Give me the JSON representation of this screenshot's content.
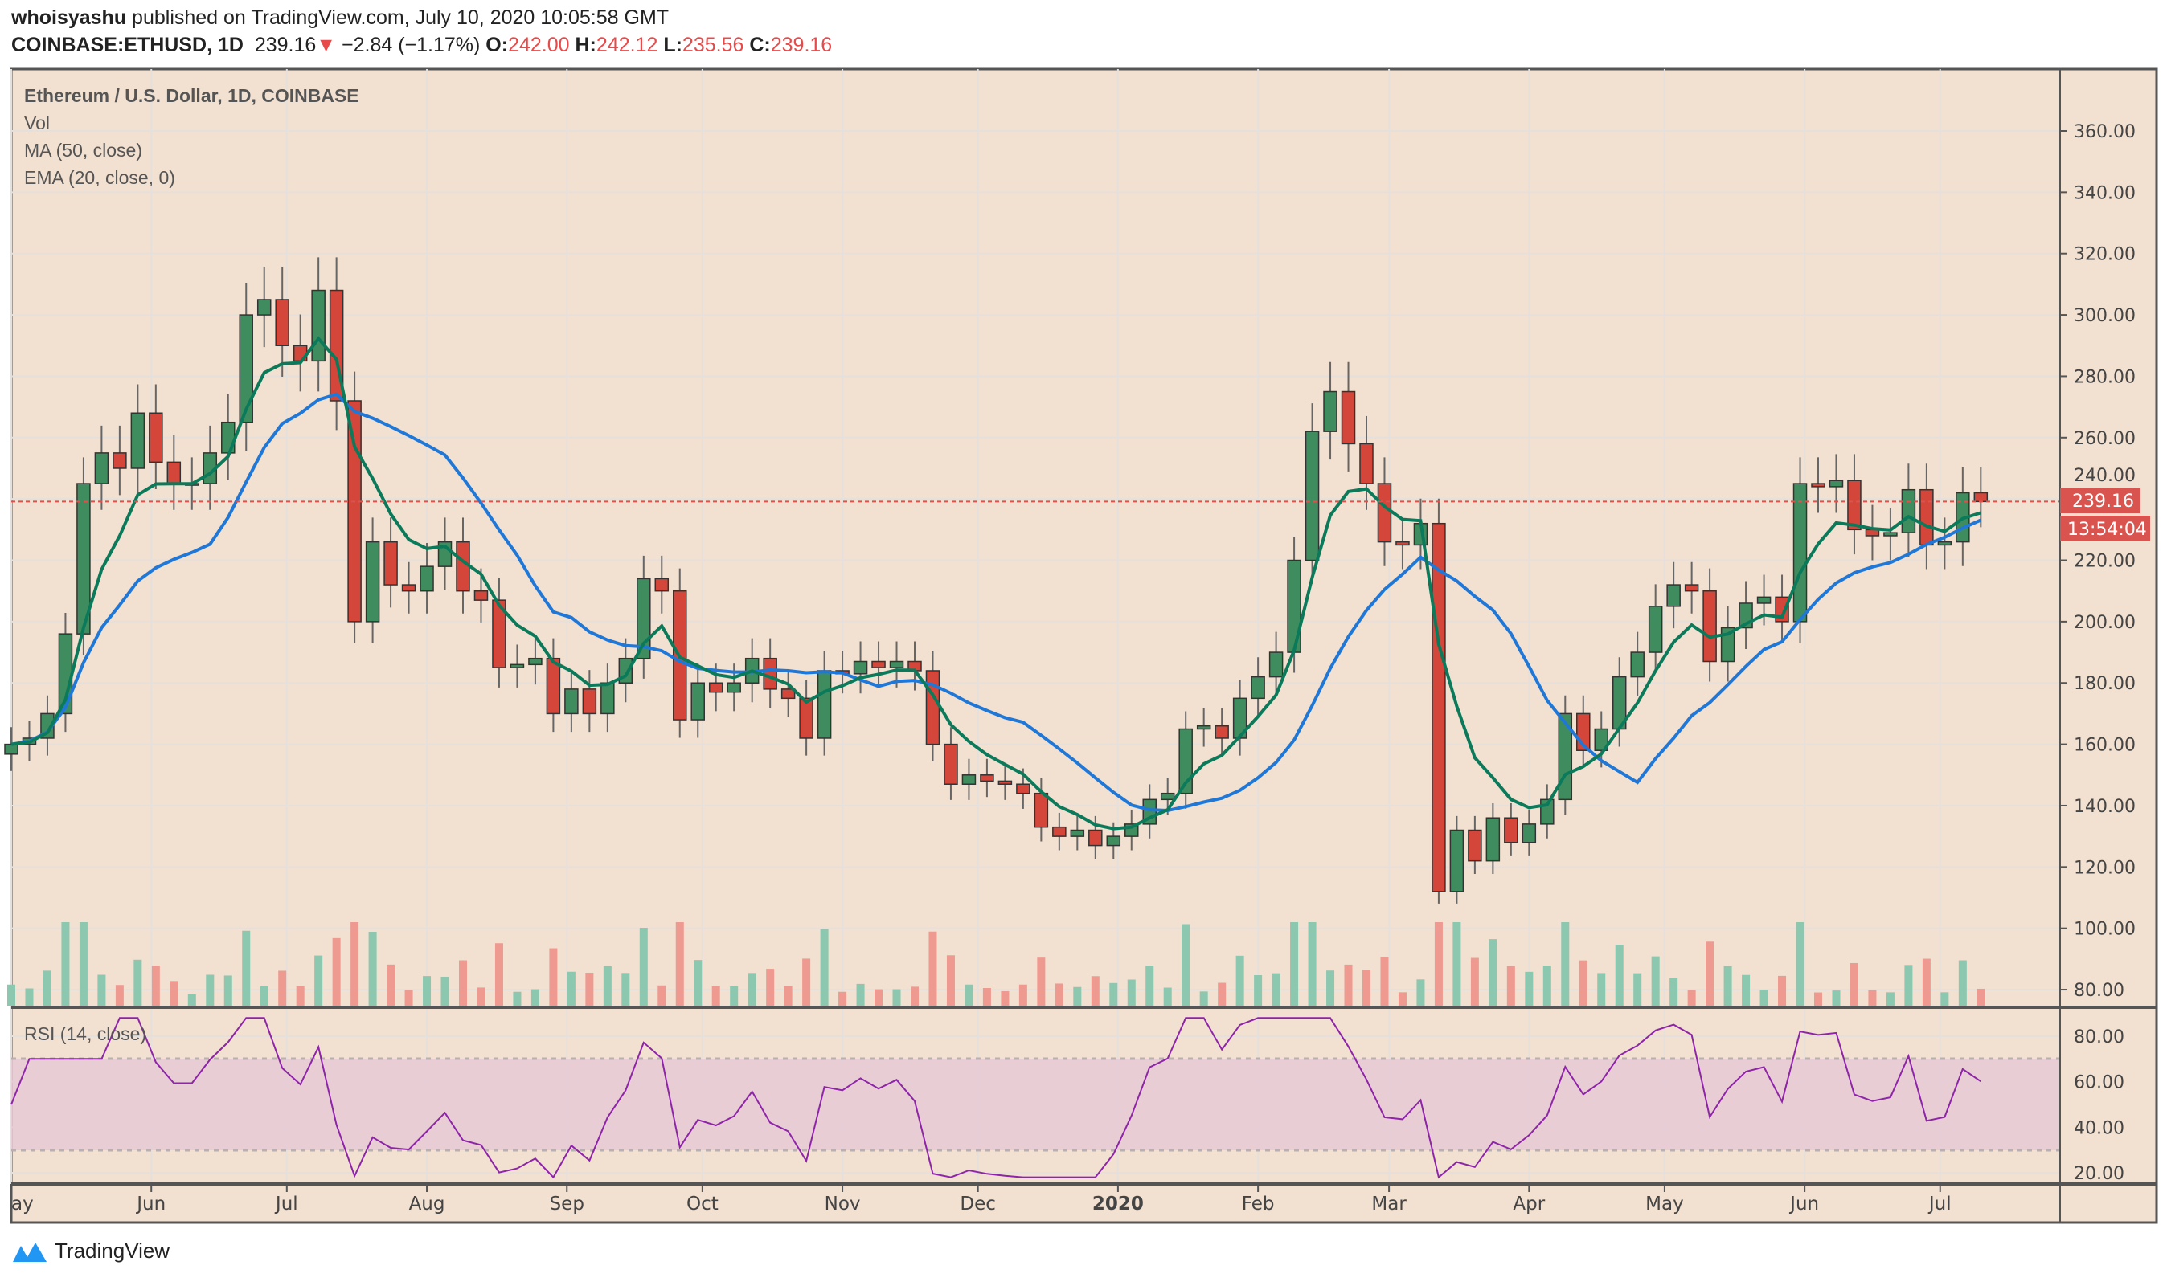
{
  "header": {
    "author": "whoisyashu",
    "published": "published on TradingView.com, July 10, 2020 10:05:58 GMT",
    "symbol": "COINBASE:ETHUSD, 1D",
    "last": "239.16",
    "change": "−2.84 (−1.17%)",
    "o_label": "O:",
    "o": "242.00",
    "h_label": "H:",
    "h": "242.12",
    "l_label": "L:",
    "l": "235.56",
    "c_label": "C:",
    "c": "239.16"
  },
  "legend": {
    "title": "Ethereum / U.S. Dollar, 1D, COINBASE",
    "vol": "Vol",
    "ma": "MA (50, close)",
    "ema": "EMA (20, close, 0)",
    "rsi": "RSI (14, close)"
  },
  "price_label": "239.16",
  "countdown": "13:54:04",
  "footer": {
    "brand": "TradingView"
  },
  "colors": {
    "background": "#f2e0d0",
    "up": "#3f8d5e",
    "down": "#d4463a",
    "ema": "#0b7a5a",
    "ma": "#1f78d8",
    "rsi": "#8e24aa",
    "rsi_band": "#e6c8d4",
    "last_price": "#d9534f"
  },
  "chart_data": [
    {
      "type": "candlestick",
      "series_name": "Ethereum / U.S. Dollar, 1D, COINBASE",
      "overlays": [
        "MA (50, close)",
        "EMA (20, close, 0)"
      ],
      "ylim": [
        70,
        370
      ],
      "y_ticks": [
        "80.00",
        "100.00",
        "120.00",
        "140.00",
        "160.00",
        "180.00",
        "200.00",
        "220.00",
        "240.00",
        "260.00",
        "280.00",
        "300.00",
        "320.00",
        "340.00",
        "360.00"
      ],
      "x_ticks": [
        {
          "label": "ay",
          "date": "2019-05-01"
        },
        {
          "label": "Jun",
          "date": "2019-06-01"
        },
        {
          "label": "Jul",
          "date": "2019-07-01"
        },
        {
          "label": "Aug",
          "date": "2019-08-01"
        },
        {
          "label": "Sep",
          "date": "2019-09-01"
        },
        {
          "label": "Oct",
          "date": "2019-10-01"
        },
        {
          "label": "Nov",
          "date": "2019-11-01"
        },
        {
          "label": "Dec",
          "date": "2019-12-01"
        },
        {
          "label": "2020",
          "date": "2020-01-01"
        },
        {
          "label": "Feb",
          "date": "2020-02-01"
        },
        {
          "label": "Mar",
          "date": "2020-03-01"
        },
        {
          "label": "Apr",
          "date": "2020-04-01"
        },
        {
          "label": "May",
          "date": "2020-05-01"
        },
        {
          "label": "Jun",
          "date": "2020-06-01"
        },
        {
          "label": "Jul",
          "date": "2020-07-01"
        }
      ],
      "last_price": 239.16,
      "closes": [
        [
          "2019-05-01",
          160
        ],
        [
          "2019-05-05",
          162
        ],
        [
          "2019-05-09",
          170
        ],
        [
          "2019-05-13",
          196
        ],
        [
          "2019-05-17",
          245
        ],
        [
          "2019-05-21",
          255
        ],
        [
          "2019-05-25",
          250
        ],
        [
          "2019-05-29",
          268
        ],
        [
          "2019-06-02",
          252
        ],
        [
          "2019-06-06",
          245
        ],
        [
          "2019-06-10",
          245
        ],
        [
          "2019-06-14",
          255
        ],
        [
          "2019-06-18",
          265
        ],
        [
          "2019-06-22",
          300
        ],
        [
          "2019-06-26",
          305
        ],
        [
          "2019-06-30",
          290
        ],
        [
          "2019-07-04",
          285
        ],
        [
          "2019-07-08",
          308
        ],
        [
          "2019-07-12",
          272
        ],
        [
          "2019-07-16",
          200
        ],
        [
          "2019-07-20",
          226
        ],
        [
          "2019-07-24",
          212
        ],
        [
          "2019-07-28",
          210
        ],
        [
          "2019-08-01",
          218
        ],
        [
          "2019-08-05",
          226
        ],
        [
          "2019-08-09",
          210
        ],
        [
          "2019-08-13",
          207
        ],
        [
          "2019-08-17",
          185
        ],
        [
          "2019-08-21",
          186
        ],
        [
          "2019-08-25",
          188
        ],
        [
          "2019-08-29",
          170
        ],
        [
          "2019-09-02",
          178
        ],
        [
          "2019-09-06",
          170
        ],
        [
          "2019-09-10",
          180
        ],
        [
          "2019-09-14",
          188
        ],
        [
          "2019-09-18",
          214
        ],
        [
          "2019-09-22",
          210
        ],
        [
          "2019-09-26",
          168
        ],
        [
          "2019-09-30",
          180
        ],
        [
          "2019-10-04",
          177
        ],
        [
          "2019-10-08",
          180
        ],
        [
          "2019-10-12",
          188
        ],
        [
          "2019-10-16",
          178
        ],
        [
          "2019-10-20",
          175
        ],
        [
          "2019-10-24",
          162
        ],
        [
          "2019-10-28",
          184
        ],
        [
          "2019-11-01",
          183
        ],
        [
          "2019-11-05",
          187
        ],
        [
          "2019-11-09",
          185
        ],
        [
          "2019-11-13",
          187
        ],
        [
          "2019-11-17",
          184
        ],
        [
          "2019-11-21",
          160
        ],
        [
          "2019-11-25",
          147
        ],
        [
          "2019-11-29",
          150
        ],
        [
          "2019-12-03",
          148
        ],
        [
          "2019-12-07",
          147
        ],
        [
          "2019-12-11",
          144
        ],
        [
          "2019-12-15",
          133
        ],
        [
          "2019-12-19",
          130
        ],
        [
          "2019-12-23",
          132
        ],
        [
          "2019-12-27",
          127
        ],
        [
          "2019-12-31",
          130
        ],
        [
          "2020-01-04",
          134
        ],
        [
          "2020-01-08",
          142
        ],
        [
          "2020-01-12",
          144
        ],
        [
          "2020-01-16",
          165
        ],
        [
          "2020-01-20",
          166
        ],
        [
          "2020-01-24",
          162
        ],
        [
          "2020-01-28",
          175
        ],
        [
          "2020-02-01",
          182
        ],
        [
          "2020-02-05",
          190
        ],
        [
          "2020-02-09",
          220
        ],
        [
          "2020-02-13",
          262
        ],
        [
          "2020-02-17",
          275
        ],
        [
          "2020-02-21",
          258
        ],
        [
          "2020-02-25",
          245
        ],
        [
          "2020-02-29",
          226
        ],
        [
          "2020-03-04",
          225
        ],
        [
          "2020-03-08",
          232
        ],
        [
          "2020-03-12",
          112
        ],
        [
          "2020-03-16",
          132
        ],
        [
          "2020-03-20",
          122
        ],
        [
          "2020-03-24",
          136
        ],
        [
          "2020-03-28",
          128
        ],
        [
          "2020-04-01",
          134
        ],
        [
          "2020-04-05",
          142
        ],
        [
          "2020-04-09",
          170
        ],
        [
          "2020-04-13",
          158
        ],
        [
          "2020-04-17",
          165
        ],
        [
          "2020-04-21",
          182
        ],
        [
          "2020-04-25",
          190
        ],
        [
          "2020-04-29",
          205
        ],
        [
          "2020-05-03",
          212
        ],
        [
          "2020-05-07",
          210
        ],
        [
          "2020-05-11",
          187
        ],
        [
          "2020-05-15",
          198
        ],
        [
          "2020-05-19",
          206
        ],
        [
          "2020-05-23",
          208
        ],
        [
          "2020-05-27",
          200
        ],
        [
          "2020-05-31",
          245
        ],
        [
          "2020-06-04",
          244
        ],
        [
          "2020-06-08",
          246
        ],
        [
          "2020-06-12",
          230
        ],
        [
          "2020-06-16",
          228
        ],
        [
          "2020-06-20",
          229
        ],
        [
          "2020-06-24",
          243
        ],
        [
          "2020-06-28",
          225
        ],
        [
          "2020-07-02",
          226
        ],
        [
          "2020-07-06",
          242
        ],
        [
          "2020-07-10",
          239.16
        ]
      ]
    },
    {
      "type": "line",
      "series_name": "RSI (14, close)",
      "ylim": [
        15,
        90
      ],
      "y_ticks": [
        "20.00",
        "40.00",
        "60.00",
        "80.00"
      ],
      "bands": [
        30,
        70
      ]
    }
  ]
}
